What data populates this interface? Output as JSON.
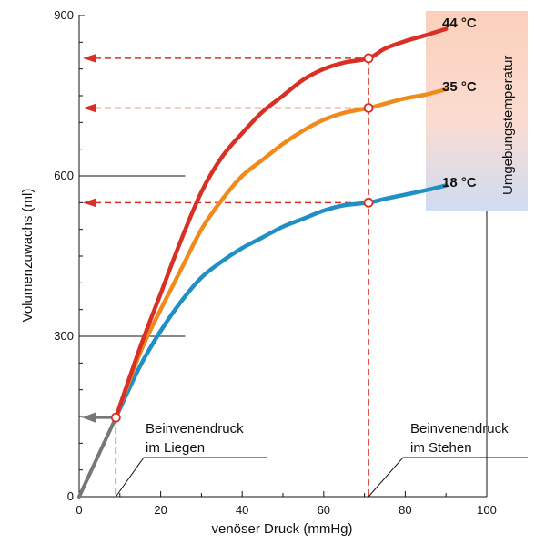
{
  "chart_data": {
    "type": "line",
    "xlabel": "venöser Druck (mmHg)",
    "ylabel": "Volumenzuwachs (ml)",
    "xlim": [
      0,
      100
    ],
    "ylim": [
      0,
      900
    ],
    "x_ticks": [
      "0",
      "20",
      "40",
      "60",
      "80",
      "100"
    ],
    "y_ticks": [
      "0",
      "300",
      "600",
      "900"
    ],
    "grid": false,
    "legend_title": "Umgebungstemperatur",
    "series": [
      {
        "name": "44 °C",
        "color": "#d93025",
        "x": [
          0,
          9,
          15,
          20,
          25,
          30,
          35,
          40,
          45,
          50,
          55,
          60,
          65,
          71,
          75,
          80,
          85,
          90
        ],
        "y": [
          0,
          148,
          280,
          380,
          480,
          570,
          635,
          680,
          720,
          750,
          780,
          800,
          812,
          820,
          838,
          852,
          863,
          875
        ]
      },
      {
        "name": "35 °C",
        "color": "#f08a1c",
        "x": [
          0,
          9,
          15,
          20,
          25,
          30,
          35,
          40,
          45,
          50,
          55,
          60,
          65,
          71,
          75,
          80,
          85,
          90
        ],
        "y": [
          0,
          148,
          270,
          350,
          425,
          500,
          555,
          600,
          630,
          660,
          685,
          705,
          718,
          727,
          735,
          745,
          752,
          762
        ]
      },
      {
        "name": "18 °C",
        "color": "#1f8fc4",
        "x": [
          0,
          9,
          15,
          20,
          25,
          30,
          35,
          40,
          45,
          50,
          55,
          60,
          65,
          71,
          75,
          80,
          85,
          90
        ],
        "y": [
          0,
          148,
          245,
          310,
          365,
          410,
          440,
          465,
          485,
          505,
          520,
          535,
          545,
          550,
          557,
          565,
          573,
          582
        ]
      }
    ],
    "annotations": {
      "lying_line1": "Beinvenendruck",
      "lying_line2": "im Liegen",
      "standing_line1": "Beinvenendruck",
      "standing_line2": "im Stehen",
      "lying_pressure": 9,
      "lying_volume": 148,
      "standing_pressure": 71,
      "standing_volumes": [
        820,
        727,
        550
      ]
    }
  }
}
